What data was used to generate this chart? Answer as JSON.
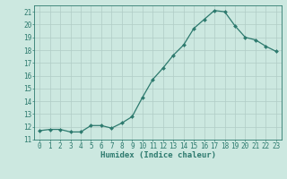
{
  "x": [
    0,
    1,
    2,
    3,
    4,
    5,
    6,
    7,
    8,
    9,
    10,
    11,
    12,
    13,
    14,
    15,
    16,
    17,
    18,
    19,
    20,
    21,
    22,
    23
  ],
  "y": [
    11.7,
    11.8,
    11.8,
    11.6,
    11.6,
    12.1,
    12.1,
    11.9,
    12.3,
    12.8,
    14.3,
    15.7,
    16.6,
    17.6,
    18.4,
    19.7,
    20.4,
    21.1,
    21.0,
    19.9,
    19.0,
    18.8,
    18.3,
    17.9
  ],
  "line_color": "#2d7a6e",
  "marker": "D",
  "marker_size": 2.0,
  "bg_color": "#cce8e0",
  "grid_color": "#b0ccC6",
  "xlabel": "Humidex (Indice chaleur)",
  "xlim": [
    -0.5,
    23.5
  ],
  "ylim": [
    11,
    21.5
  ],
  "yticks": [
    11,
    12,
    13,
    14,
    15,
    16,
    17,
    18,
    19,
    20,
    21
  ],
  "xticks": [
    0,
    1,
    2,
    3,
    4,
    5,
    6,
    7,
    8,
    9,
    10,
    11,
    12,
    13,
    14,
    15,
    16,
    17,
    18,
    19,
    20,
    21,
    22,
    23
  ],
  "tick_color": "#2d7a6e",
  "tick_fontsize": 5.5,
  "xlabel_fontsize": 6.5,
  "label_color": "#2d7a6e",
  "spine_color": "#2d7a6e"
}
